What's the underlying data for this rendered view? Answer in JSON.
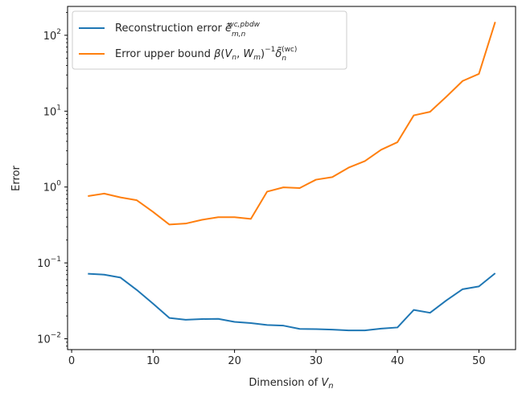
{
  "chart_data": {
    "type": "line",
    "xlabel": "Dimension of V_n",
    "ylabel": "Error",
    "yscale": "log",
    "grid": false,
    "legend_position": "top-left",
    "xlim": [
      -0.5,
      54.5
    ],
    "ylim": [
      0.0072,
      240
    ],
    "xticks": [
      0,
      10,
      20,
      30,
      40,
      50
    ],
    "yticks": [
      {
        "value": 0.01,
        "base": "10",
        "exp": "−2"
      },
      {
        "value": 0.1,
        "base": "10",
        "exp": "−1"
      },
      {
        "value": 1,
        "base": "10",
        "exp": "0"
      },
      {
        "value": 10,
        "base": "10",
        "exp": "1"
      },
      {
        "value": 100,
        "base": "10",
        "exp": "2"
      }
    ],
    "x": [
      2,
      4,
      6,
      8,
      10,
      12,
      14,
      16,
      18,
      20,
      22,
      24,
      26,
      28,
      30,
      32,
      34,
      36,
      38,
      40,
      42,
      44,
      46,
      48,
      50,
      52
    ],
    "series": [
      {
        "name": "Reconstruction error ẽ^{wc,pbdw}_{m,n}",
        "color": "#1f77b4",
        "values": [
          0.072,
          0.07,
          0.064,
          0.044,
          0.029,
          0.0188,
          0.0178,
          0.0182,
          0.0183,
          0.0167,
          0.0161,
          0.0152,
          0.0149,
          0.0135,
          0.0134,
          0.0132,
          0.0129,
          0.0129,
          0.0136,
          0.0141,
          0.024,
          0.022,
          0.032,
          0.045,
          0.049,
          0.073
        ]
      },
      {
        "name": "Error upper bound β(V_n, W_m)^{−1} δ̃_n^{(wc)}",
        "color": "#ff7f0e",
        "values": [
          0.76,
          0.82,
          0.73,
          0.67,
          0.47,
          0.32,
          0.33,
          0.37,
          0.4,
          0.4,
          0.38,
          0.87,
          0.99,
          0.97,
          1.25,
          1.35,
          1.8,
          2.2,
          3.1,
          3.9,
          8.8,
          9.8,
          15.5,
          25,
          31,
          150
        ]
      }
    ]
  }
}
